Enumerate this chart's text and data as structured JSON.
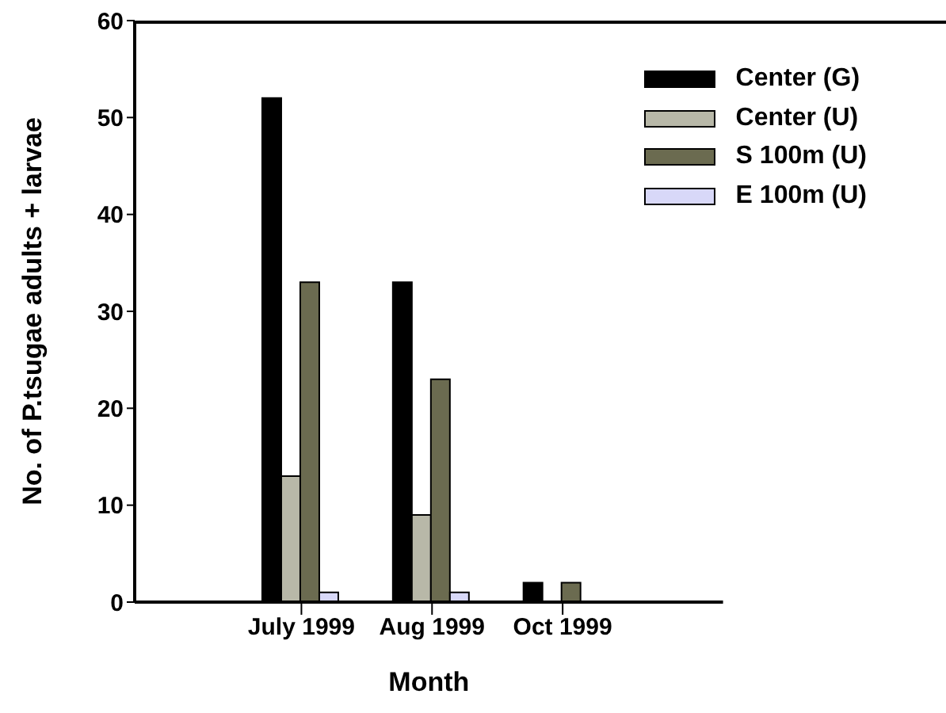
{
  "chart_data": {
    "type": "bar",
    "xlabel": "Month",
    "ylabel": "No. of P.tsugae adults + larvae",
    "categories": [
      "July 1999",
      "Aug 1999",
      "Oct 1999"
    ],
    "series": [
      {
        "name": "Center (G)",
        "color": "#000000",
        "values": [
          52,
          33,
          2
        ]
      },
      {
        "name": "Center (U)",
        "color": "#b8b8a8",
        "values": [
          13,
          9,
          0
        ]
      },
      {
        "name": "S 100m (U)",
        "color": "#6b6b50",
        "values": [
          33,
          23,
          2
        ]
      },
      {
        "name": "E 100m (U)",
        "color": "#d8d8f8",
        "values": [
          1,
          1,
          0
        ]
      }
    ],
    "ylim": [
      0,
      60
    ],
    "yticks": [
      0,
      10,
      20,
      30,
      40,
      50,
      60
    ],
    "grid": false,
    "legend": "top right"
  }
}
